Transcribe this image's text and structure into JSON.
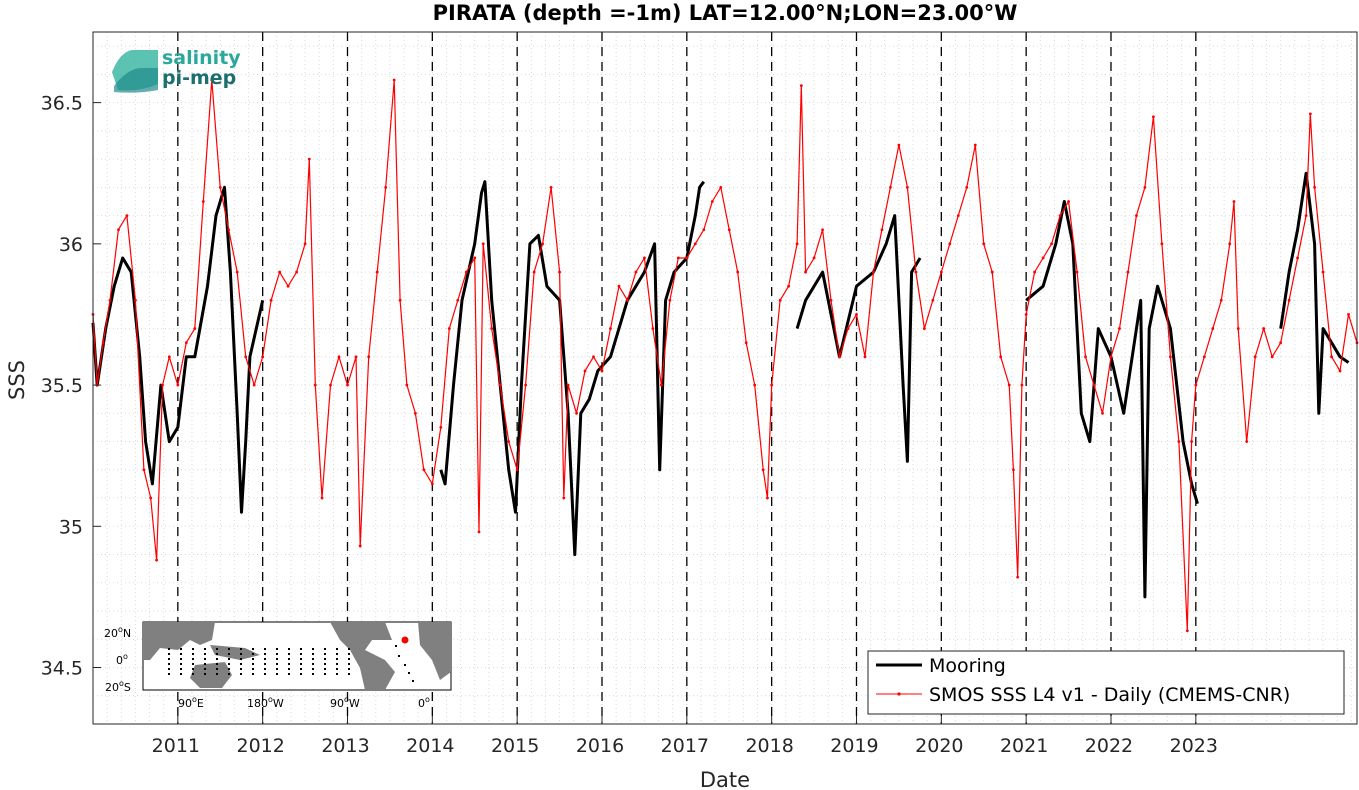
{
  "chart_data": {
    "type": "line",
    "title": "PIRATA (depth =-1m) LAT=12.00°N;LON=23.00°W",
    "xlabel": "Date",
    "ylabel": "SSS",
    "x_unit": "year",
    "xlim": [
      2010.0,
      2024.9
    ],
    "ylim": [
      34.3,
      36.75
    ],
    "x_ticks": [
      2011,
      2012,
      2013,
      2014,
      2015,
      2016,
      2017,
      2018,
      2019,
      2020,
      2021,
      2022,
      2023
    ],
    "x_tick_labels": [
      "2011",
      "2012",
      "2013",
      "2014",
      "2015",
      "2016",
      "2017",
      "2018",
      "2019",
      "2020",
      "2021",
      "2022",
      "2023"
    ],
    "y_ticks": [
      34.5,
      35,
      35.5,
      36,
      36.5
    ],
    "y_tick_labels": [
      "34.5",
      "35",
      "35.5",
      "36",
      "36.5"
    ],
    "vertical_dashed_lines": [
      2011,
      2012,
      2013,
      2014,
      2015,
      2016,
      2017,
      2018,
      2019,
      2020,
      2021,
      2022,
      2023
    ],
    "grid": "minor dotted",
    "legend_position": "bottom-right",
    "series": [
      {
        "name": "Mooring",
        "color": "#000000",
        "points": [
          [
            2010.0,
            35.72
          ],
          [
            2010.05,
            35.5
          ],
          [
            2010.15,
            35.7
          ],
          [
            2010.25,
            35.85
          ],
          [
            2010.35,
            35.95
          ],
          [
            2010.45,
            35.9
          ],
          [
            2010.55,
            35.6
          ],
          [
            2010.62,
            35.3
          ],
          [
            2010.7,
            35.15
          ],
          [
            2010.8,
            35.5
          ],
          [
            2010.9,
            35.3
          ],
          [
            2011.0,
            35.35
          ],
          [
            2011.1,
            35.6
          ],
          [
            2011.2,
            35.6
          ],
          [
            2011.35,
            35.85
          ],
          [
            2011.45,
            36.1
          ],
          [
            2011.55,
            36.2
          ],
          [
            2011.62,
            35.9
          ],
          [
            2011.7,
            35.4
          ],
          [
            2011.75,
            35.05
          ],
          [
            2011.8,
            35.3
          ],
          [
            2011.85,
            35.6
          ],
          [
            2012.0,
            35.8
          ],
          [
            2014.1,
            35.2
          ],
          [
            2014.15,
            35.15
          ],
          [
            2014.25,
            35.5
          ],
          [
            2014.35,
            35.8
          ],
          [
            2014.5,
            36.0
          ],
          [
            2014.58,
            36.18
          ],
          [
            2014.62,
            36.22
          ],
          [
            2014.7,
            35.8
          ],
          [
            2014.8,
            35.5
          ],
          [
            2014.9,
            35.2
          ],
          [
            2014.98,
            35.05
          ],
          [
            2015.05,
            35.5
          ],
          [
            2015.15,
            36.0
          ],
          [
            2015.25,
            36.03
          ],
          [
            2015.35,
            35.85
          ],
          [
            2015.5,
            35.8
          ],
          [
            2015.6,
            35.4
          ],
          [
            2015.68,
            34.9
          ],
          [
            2015.75,
            35.4
          ],
          [
            2015.85,
            35.45
          ],
          [
            2015.95,
            35.55
          ],
          [
            2016.1,
            35.6
          ],
          [
            2016.3,
            35.8
          ],
          [
            2016.5,
            35.9
          ],
          [
            2016.62,
            36.0
          ],
          [
            2016.68,
            35.2
          ],
          [
            2016.75,
            35.8
          ],
          [
            2016.85,
            35.9
          ],
          [
            2017.0,
            35.95
          ],
          [
            2017.1,
            36.1
          ],
          [
            2017.15,
            36.2
          ],
          [
            2017.2,
            36.22
          ],
          [
            2018.3,
            35.7
          ],
          [
            2018.4,
            35.8
          ],
          [
            2018.6,
            35.9
          ],
          [
            2018.8,
            35.6
          ],
          [
            2019.0,
            35.85
          ],
          [
            2019.2,
            35.9
          ],
          [
            2019.35,
            36.0
          ],
          [
            2019.45,
            36.1
          ],
          [
            2019.55,
            35.5
          ],
          [
            2019.6,
            35.23
          ],
          [
            2019.65,
            35.9
          ],
          [
            2019.75,
            35.95
          ],
          [
            2021.0,
            35.8
          ],
          [
            2021.2,
            35.85
          ],
          [
            2021.35,
            36.0
          ],
          [
            2021.45,
            36.15
          ],
          [
            2021.55,
            36.0
          ],
          [
            2021.65,
            35.4
          ],
          [
            2021.75,
            35.3
          ],
          [
            2021.85,
            35.7
          ],
          [
            2022.0,
            35.6
          ],
          [
            2022.15,
            35.4
          ],
          [
            2022.25,
            35.6
          ],
          [
            2022.35,
            35.8
          ],
          [
            2022.4,
            34.75
          ],
          [
            2022.45,
            35.7
          ],
          [
            2022.55,
            35.85
          ],
          [
            2022.7,
            35.7
          ],
          [
            2022.85,
            35.3
          ],
          [
            2022.95,
            35.15
          ],
          [
            2023.02,
            35.08
          ],
          [
            2024.0,
            35.7
          ],
          [
            2024.1,
            35.9
          ],
          [
            2024.2,
            36.05
          ],
          [
            2024.3,
            36.25
          ],
          [
            2024.4,
            36.0
          ],
          [
            2024.45,
            35.4
          ],
          [
            2024.5,
            35.7
          ],
          [
            2024.6,
            35.65
          ],
          [
            2024.7,
            35.6
          ],
          [
            2024.8,
            35.58
          ]
        ]
      },
      {
        "name": "SMOS SSS L4 v1 - Daily (CMEMS-CNR)",
        "color": "#ff0000",
        "points": [
          [
            2010.0,
            35.75
          ],
          [
            2010.05,
            35.5
          ],
          [
            2010.12,
            35.65
          ],
          [
            2010.2,
            35.8
          ],
          [
            2010.3,
            36.05
          ],
          [
            2010.4,
            36.1
          ],
          [
            2010.5,
            35.8
          ],
          [
            2010.6,
            35.2
          ],
          [
            2010.68,
            35.1
          ],
          [
            2010.75,
            34.88
          ],
          [
            2010.82,
            35.5
          ],
          [
            2010.9,
            35.6
          ],
          [
            2011.0,
            35.5
          ],
          [
            2011.1,
            35.65
          ],
          [
            2011.2,
            35.7
          ],
          [
            2011.3,
            36.15
          ],
          [
            2011.4,
            36.58
          ],
          [
            2011.5,
            36.2
          ],
          [
            2011.6,
            36.05
          ],
          [
            2011.7,
            35.9
          ],
          [
            2011.8,
            35.6
          ],
          [
            2011.9,
            35.5
          ],
          [
            2012.0,
            35.6
          ],
          [
            2012.1,
            35.8
          ],
          [
            2012.2,
            35.9
          ],
          [
            2012.3,
            35.85
          ],
          [
            2012.4,
            35.9
          ],
          [
            2012.5,
            36.0
          ],
          [
            2012.55,
            36.3
          ],
          [
            2012.62,
            35.5
          ],
          [
            2012.7,
            35.1
          ],
          [
            2012.8,
            35.5
          ],
          [
            2012.9,
            35.6
          ],
          [
            2013.0,
            35.5
          ],
          [
            2013.1,
            35.6
          ],
          [
            2013.15,
            34.93
          ],
          [
            2013.25,
            35.6
          ],
          [
            2013.35,
            35.9
          ],
          [
            2013.45,
            36.2
          ],
          [
            2013.55,
            36.58
          ],
          [
            2013.62,
            35.8
          ],
          [
            2013.7,
            35.5
          ],
          [
            2013.8,
            35.4
          ],
          [
            2013.9,
            35.2
          ],
          [
            2014.0,
            35.15
          ],
          [
            2014.1,
            35.35
          ],
          [
            2014.2,
            35.7
          ],
          [
            2014.3,
            35.8
          ],
          [
            2014.4,
            35.9
          ],
          [
            2014.5,
            35.95
          ],
          [
            2014.55,
            34.98
          ],
          [
            2014.6,
            36.0
          ],
          [
            2014.7,
            35.7
          ],
          [
            2014.8,
            35.5
          ],
          [
            2014.9,
            35.3
          ],
          [
            2015.0,
            35.2
          ],
          [
            2015.1,
            35.5
          ],
          [
            2015.2,
            35.9
          ],
          [
            2015.3,
            36.0
          ],
          [
            2015.4,
            36.2
          ],
          [
            2015.5,
            35.9
          ],
          [
            2015.55,
            35.1
          ],
          [
            2015.6,
            35.5
          ],
          [
            2015.7,
            35.4
          ],
          [
            2015.8,
            35.55
          ],
          [
            2015.9,
            35.6
          ],
          [
            2016.0,
            35.55
          ],
          [
            2016.1,
            35.7
          ],
          [
            2016.2,
            35.85
          ],
          [
            2016.3,
            35.8
          ],
          [
            2016.4,
            35.9
          ],
          [
            2016.5,
            35.95
          ],
          [
            2016.6,
            35.7
          ],
          [
            2016.7,
            35.5
          ],
          [
            2016.8,
            35.8
          ],
          [
            2016.9,
            35.95
          ],
          [
            2017.0,
            35.95
          ],
          [
            2017.1,
            36.0
          ],
          [
            2017.2,
            36.05
          ],
          [
            2017.3,
            36.15
          ],
          [
            2017.4,
            36.2
          ],
          [
            2017.5,
            36.05
          ],
          [
            2017.6,
            35.9
          ],
          [
            2017.7,
            35.65
          ],
          [
            2017.8,
            35.5
          ],
          [
            2017.9,
            35.2
          ],
          [
            2017.95,
            35.1
          ],
          [
            2018.0,
            35.5
          ],
          [
            2018.1,
            35.8
          ],
          [
            2018.2,
            35.85
          ],
          [
            2018.3,
            36.0
          ],
          [
            2018.35,
            36.56
          ],
          [
            2018.4,
            35.9
          ],
          [
            2018.5,
            35.95
          ],
          [
            2018.6,
            36.05
          ],
          [
            2018.7,
            35.8
          ],
          [
            2018.8,
            35.6
          ],
          [
            2018.9,
            35.7
          ],
          [
            2019.0,
            35.75
          ],
          [
            2019.1,
            35.6
          ],
          [
            2019.2,
            35.9
          ],
          [
            2019.3,
            36.05
          ],
          [
            2019.4,
            36.2
          ],
          [
            2019.5,
            36.35
          ],
          [
            2019.6,
            36.2
          ],
          [
            2019.7,
            35.9
          ],
          [
            2019.8,
            35.7
          ],
          [
            2019.9,
            35.8
          ],
          [
            2020.0,
            35.9
          ],
          [
            2020.1,
            36.0
          ],
          [
            2020.2,
            36.1
          ],
          [
            2020.3,
            36.2
          ],
          [
            2020.4,
            36.35
          ],
          [
            2020.5,
            36.0
          ],
          [
            2020.6,
            35.9
          ],
          [
            2020.7,
            35.6
          ],
          [
            2020.8,
            35.5
          ],
          [
            2020.85,
            35.2
          ],
          [
            2020.9,
            34.82
          ],
          [
            2020.95,
            35.5
          ],
          [
            2021.0,
            35.75
          ],
          [
            2021.1,
            35.9
          ],
          [
            2021.2,
            35.95
          ],
          [
            2021.3,
            36.0
          ],
          [
            2021.4,
            36.1
          ],
          [
            2021.5,
            36.15
          ],
          [
            2021.6,
            35.9
          ],
          [
            2021.7,
            35.6
          ],
          [
            2021.8,
            35.5
          ],
          [
            2021.9,
            35.4
          ],
          [
            2022.0,
            35.6
          ],
          [
            2022.1,
            35.7
          ],
          [
            2022.2,
            35.9
          ],
          [
            2022.3,
            36.1
          ],
          [
            2022.4,
            36.2
          ],
          [
            2022.5,
            36.45
          ],
          [
            2022.6,
            36.0
          ],
          [
            2022.7,
            35.6
          ],
          [
            2022.8,
            35.3
          ],
          [
            2022.9,
            34.63
          ],
          [
            2022.95,
            35.3
          ],
          [
            2023.0,
            35.5
          ],
          [
            2023.1,
            35.6
          ],
          [
            2023.2,
            35.7
          ],
          [
            2023.3,
            35.8
          ],
          [
            2023.4,
            36.0
          ],
          [
            2023.45,
            36.15
          ],
          [
            2023.5,
            35.7
          ],
          [
            2023.6,
            35.3
          ],
          [
            2023.7,
            35.6
          ],
          [
            2023.8,
            35.7
          ],
          [
            2023.9,
            35.6
          ],
          [
            2024.0,
            35.65
          ],
          [
            2024.1,
            35.8
          ],
          [
            2024.2,
            35.95
          ],
          [
            2024.3,
            36.1
          ],
          [
            2024.35,
            36.46
          ],
          [
            2024.4,
            36.2
          ],
          [
            2024.5,
            35.9
          ],
          [
            2024.6,
            35.6
          ],
          [
            2024.7,
            35.55
          ],
          [
            2024.8,
            35.75
          ],
          [
            2024.9,
            35.65
          ]
        ]
      }
    ]
  },
  "logo": {
    "line1": "salinity",
    "line2": "pi-mep"
  },
  "inset_map": {
    "lat_labels": [
      "20",
      "0",
      "20"
    ],
    "lat_suffixes": [
      "N",
      "",
      "S"
    ],
    "lon_labels": [
      "90",
      "180",
      "90",
      "0"
    ],
    "lon_suffixes": [
      "E",
      "W",
      "W",
      ""
    ],
    "degree_mark": "o"
  }
}
